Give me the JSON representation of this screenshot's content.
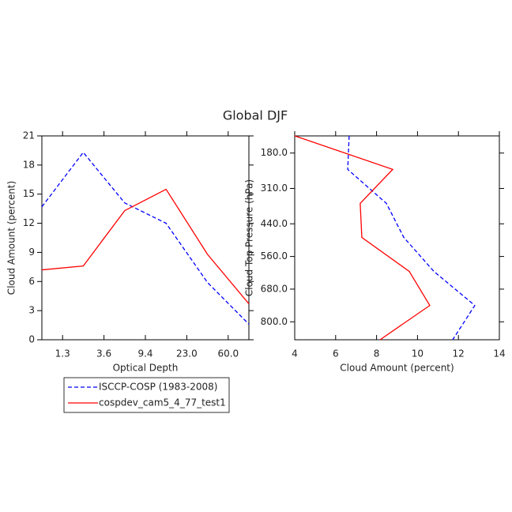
{
  "title": "Global DJF",
  "chart_data": [
    {
      "type": "line",
      "xlabel": "Optical Depth",
      "ylabel": "Cloud Amount (percent)",
      "x": [
        0,
        1,
        2,
        3,
        4,
        5
      ],
      "xlim": [
        0,
        5
      ],
      "xticks": [
        {
          "value": 0.5,
          "label": "1.3"
        },
        {
          "value": 1.5,
          "label": "3.6"
        },
        {
          "value": 2.5,
          "label": "9.4"
        },
        {
          "value": 3.5,
          "label": "23.0"
        },
        {
          "value": 4.5,
          "label": "60.0"
        }
      ],
      "ylim": [
        0,
        21
      ],
      "yticks": [
        0,
        3,
        6,
        9,
        12,
        15,
        18,
        21
      ],
      "series": [
        {
          "name": "ISCCP-COSP (1983-2008)",
          "color": "#0000ff",
          "dash": true,
          "values": [
            13.7,
            19.3,
            14.1,
            12.0,
            5.9,
            1.6
          ]
        },
        {
          "name": "cospdev_cam5_4_77_test1",
          "color": "#ff0000",
          "dash": false,
          "values": [
            7.2,
            7.6,
            13.3,
            15.5,
            8.8,
            3.7
          ]
        }
      ]
    },
    {
      "type": "profile",
      "xlabel": "Cloud Amount (percent)",
      "ylabel": "Cloud Top Pressure (hPa)",
      "xlim": [
        4,
        14
      ],
      "xticks": [
        4,
        6,
        8,
        10,
        12,
        14
      ],
      "y": [
        117,
        240,
        365,
        490,
        615,
        740,
        866
      ],
      "ylim": [
        117,
        866
      ],
      "yreverse": true,
      "yticks": [
        {
          "value": 180,
          "label": "180.0"
        },
        {
          "value": 310,
          "label": "310.0"
        },
        {
          "value": 440,
          "label": "440.0"
        },
        {
          "value": 560,
          "label": "560.0"
        },
        {
          "value": 680,
          "label": "680.0"
        },
        {
          "value": 800,
          "label": "800.0"
        }
      ],
      "series": [
        {
          "color": "#0000ff",
          "dash": true,
          "values": [
            6.66,
            6.59,
            8.48,
            9.33,
            10.8,
            12.8,
            11.72
          ]
        },
        {
          "color": "#ff0000",
          "dash": false,
          "values": [
            4.0,
            8.79,
            7.2,
            7.28,
            9.6,
            10.6,
            8.17
          ]
        }
      ]
    }
  ]
}
